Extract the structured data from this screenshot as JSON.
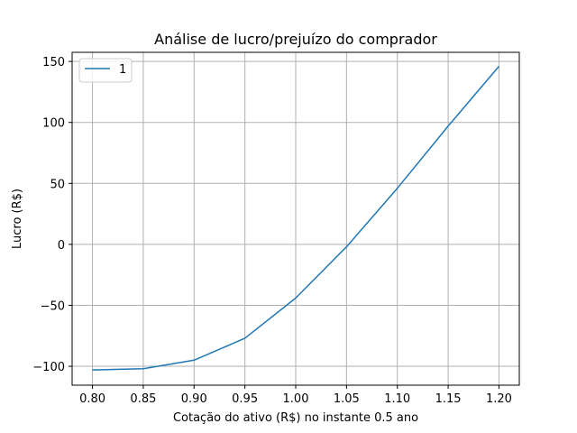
{
  "chart_data": {
    "type": "line",
    "title": "Análise de lucro/prejuízo do comprador",
    "xlabel": "Cotação do ativo (R$) no instante 0.5 ano",
    "ylabel": "Lucro (R$)",
    "x": [
      0.8,
      0.85,
      0.9,
      0.95,
      1.0,
      1.05,
      1.1,
      1.15,
      1.2
    ],
    "x_tick_labels": [
      "0.80",
      "0.85",
      "0.90",
      "0.95",
      "1.00",
      "1.05",
      "1.10",
      "1.15",
      "1.20"
    ],
    "y_ticks": [
      -100,
      -50,
      0,
      50,
      100,
      150
    ],
    "y_tick_labels": [
      "−100",
      "−50",
      "0",
      "50",
      "100",
      "150"
    ],
    "xlim": [
      0.78,
      1.22
    ],
    "ylim": [
      -115.5,
      157.5
    ],
    "grid": true,
    "legend_position": "top-left",
    "series": [
      {
        "name": "1",
        "color": "#1f77b4",
        "values": [
          -103,
          -102,
          -95,
          -77,
          -44,
          -2,
          46,
          97,
          146
        ]
      }
    ]
  }
}
